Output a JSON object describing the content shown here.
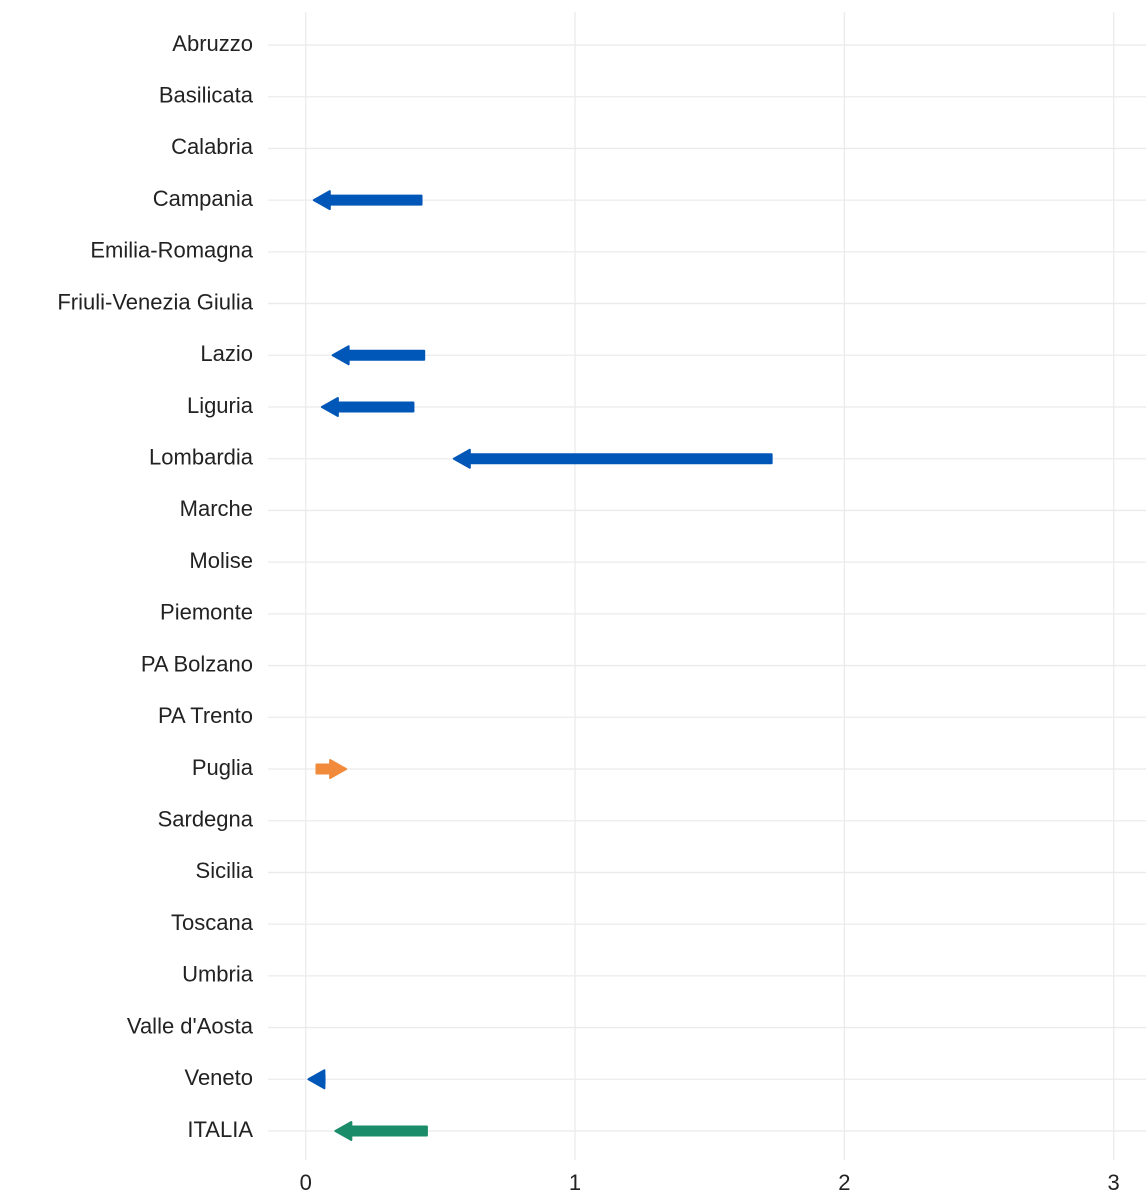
{
  "chart_data": {
    "type": "arrow",
    "categories": [
      "Abruzzo",
      "Basilicata",
      "Calabria",
      "Campania",
      "Emilia-Romagna",
      "Friuli-Venezia Giulia",
      "Lazio",
      "Liguria",
      "Lombardia",
      "Marche",
      "Molise",
      "Piemonte",
      "PA Bolzano",
      "PA Trento",
      "Puglia",
      "Sardegna",
      "Sicilia",
      "Toscana",
      "Umbria",
      "Valle d'Aosta",
      "Veneto",
      "ITALIA"
    ],
    "start": [
      null,
      null,
      null,
      0.43,
      null,
      null,
      0.44,
      0.4,
      1.73,
      null,
      null,
      null,
      null,
      null,
      0.04,
      null,
      null,
      null,
      null,
      null,
      0.07,
      0.45
    ],
    "end": [
      null,
      null,
      null,
      0.03,
      null,
      null,
      0.1,
      0.06,
      0.55,
      null,
      null,
      null,
      null,
      null,
      0.15,
      null,
      null,
      null,
      null,
      null,
      0.01,
      0.11
    ],
    "colors": [
      null,
      null,
      null,
      "#0057b7",
      null,
      null,
      "#0057b7",
      "#0057b7",
      "#0057b7",
      null,
      null,
      null,
      null,
      null,
      "#f28a3c",
      null,
      null,
      null,
      null,
      null,
      "#0057b7",
      "#1a8c6a"
    ],
    "xlim": [
      -0.14,
      3.12
    ],
    "xticks": [
      0,
      1,
      2,
      3
    ],
    "grid": true
  }
}
